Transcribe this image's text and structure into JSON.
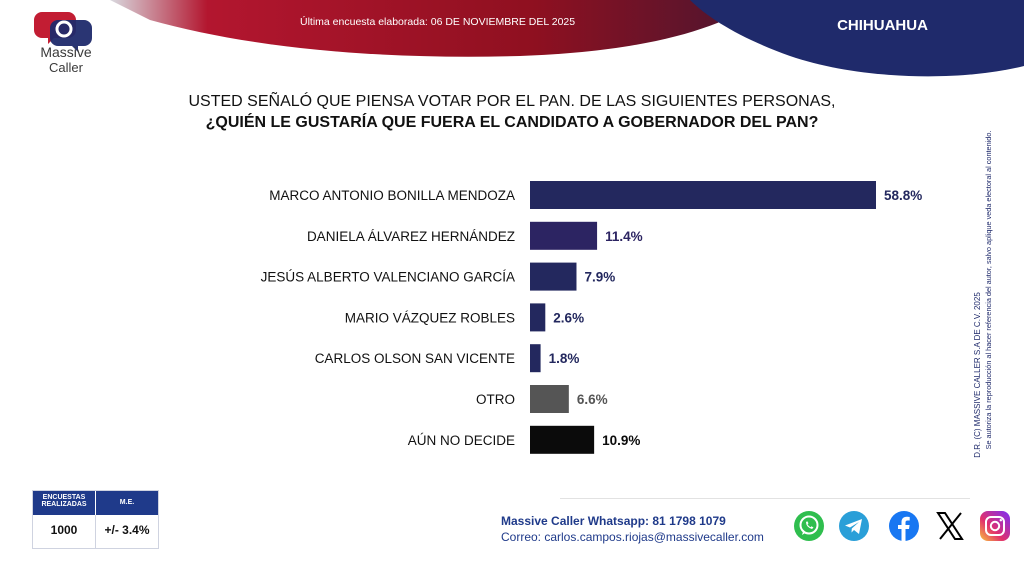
{
  "header": {
    "date_text": "Última encuesta elaborada: 06 DE NOVIEMBRE DEL 2025",
    "region": "CHIHUAHUA"
  },
  "logo": {
    "line1": "Massive",
    "line2": "Caller"
  },
  "question": {
    "line1": "USTED SEÑALÓ QUE PIENSA VOTAR POR EL PAN. DE LAS SIGUIENTES PERSONAS,",
    "line2": "¿QUIÉN LE GUSTARÍA QUE FUERA EL CANDIDATO A GOBERNADOR DEL PAN?"
  },
  "chart_data": {
    "type": "bar",
    "orientation": "horizontal",
    "categories": [
      "MARCO ANTONIO BONILLA MENDOZA",
      "DANIELA ÁLVAREZ HERNÁNDEZ",
      "JESÚS ALBERTO VALENCIANO GARCÍA",
      "MARIO VÁZQUEZ ROBLES",
      "CARLOS OLSON SAN VICENTE",
      "OTRO",
      "AÚN NO DECIDE"
    ],
    "values": [
      58.8,
      11.4,
      7.9,
      2.6,
      1.8,
      6.6,
      10.9
    ],
    "value_labels": [
      "58.8%",
      "11.4%",
      "7.9%",
      "2.6%",
      "1.8%",
      "6.6%",
      "10.9%"
    ],
    "colors": [
      "#23285e",
      "#2c2462",
      "#23285e",
      "#23285e",
      "#23285e",
      "#555555",
      "#0b0b0b"
    ],
    "label_colors": [
      "#23285e",
      "#2c2462",
      "#23285e",
      "#23285e",
      "#23285e",
      "#555555",
      "#0b0b0b"
    ],
    "xlim": [
      0,
      60
    ]
  },
  "sidebar": {
    "line1": "D.R. (C) MASSIVE CALLER S.A DE C.V. 2025",
    "line2": "Se autoriza la reproducción al hacer referencia del autor, salvo aplique veda electoral al contenido."
  },
  "info_box": {
    "head1": "ENCUESTAS REALIZADAS",
    "head2": "M.E.",
    "value1": "1000",
    "value2": "+/- 3.4%"
  },
  "contact": {
    "whatsapp": "Massive Caller Whatsapp: 81 1798 1079",
    "email": "Correo: carlos.campos.riojas@massivecaller.com"
  },
  "colors": {
    "header_red": "#a3162b",
    "header_navy": "#1f2a6b",
    "bar_primary": "#23285e"
  },
  "social_icons": [
    "whatsapp-icon",
    "telegram-icon",
    "facebook-icon",
    "x-icon",
    "instagram-icon"
  ]
}
